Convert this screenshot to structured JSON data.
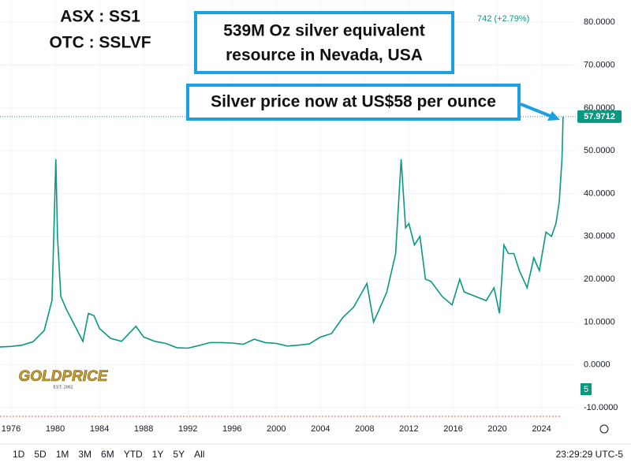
{
  "chart_data": {
    "type": "line",
    "x": [
      1975.0,
      1976,
      1977,
      1978,
      1979,
      1979.7,
      1980.05,
      1980.2,
      1980.5,
      1981,
      1982,
      1982.5,
      1983,
      1983.5,
      1984,
      1985,
      1986,
      1987.3,
      1988,
      1989,
      1990,
      1991,
      1992,
      1993,
      1994,
      1995,
      1996,
      1997,
      1998,
      1999,
      2000,
      2001,
      2002,
      2003,
      2004,
      2005,
      2006,
      2007,
      2008.2,
      2008.8,
      2009.5,
      2010,
      2010.8,
      2011.3,
      2011.7,
      2012,
      2012.5,
      2013,
      2013.5,
      2014,
      2015,
      2015.9,
      2016.6,
      2017,
      2018,
      2019,
      2019.7,
      2020.2,
      2020.6,
      2021,
      2021.5,
      2022,
      2022.7,
      2023.3,
      2023.8,
      2024.4,
      2024.9,
      2025.3,
      2025.6,
      2025.85,
      2025.95
    ],
    "values": [
      4.2,
      4.3,
      4.6,
      5.4,
      8,
      15,
      48,
      30,
      16,
      13,
      8,
      5.5,
      12,
      11.5,
      8.5,
      6.2,
      5.5,
      9,
      6.5,
      5.5,
      5,
      4,
      3.9,
      4.5,
      5.2,
      5.2,
      5.1,
      4.8,
      6,
      5.2,
      5,
      4.4,
      4.6,
      4.9,
      6.5,
      7.3,
      11,
      13.5,
      19,
      10,
      14,
      17,
      26,
      48,
      32,
      33,
      28,
      30,
      20,
      19.5,
      16,
      14,
      20,
      17,
      16,
      15,
      18,
      12,
      28,
      26,
      26,
      22,
      18,
      25,
      22,
      31,
      30,
      33,
      38,
      48,
      57.97
    ],
    "color": "#089981",
    "xlim": [
      1975.0,
      2027.1
    ],
    "ylim": [
      -12.4,
      85.2
    ],
    "xticks": [
      1976,
      1980,
      1984,
      1988,
      1992,
      1996,
      2000,
      2004,
      2008,
      2012,
      2016,
      2020,
      2024
    ],
    "yticks": [
      {
        "value": 80,
        "label": "80.0000"
      },
      {
        "value": 70,
        "label": "70.0000"
      },
      {
        "value": 60,
        "label": "60.0000"
      },
      {
        "value": 50,
        "label": "50.0000"
      },
      {
        "value": 40,
        "label": "40.0000"
      },
      {
        "value": 30,
        "label": "30.0000"
      },
      {
        "value": 20,
        "label": "20.0000"
      },
      {
        "value": 10,
        "label": "10.0000"
      },
      {
        "value": 0,
        "label": "0.0000"
      },
      {
        "value": -10,
        "label": "-10.0000"
      }
    ],
    "last_label": "57.9712",
    "change_text": "742 (+2.79%)",
    "volume_label": "5",
    "tickers": [
      "ASX : SS1",
      "OTC : SSLVF"
    ],
    "box_lines": [
      "539M Oz silver equivalent",
      "resource in Nevada, USA"
    ],
    "price_note": "Silver price now at US$58 per ounce"
  },
  "logo": {
    "name": "GOLDPRICE",
    "est": "EST. 2002"
  },
  "toolbar": {
    "ranges": [
      "1D",
      "5D",
      "1M",
      "3M",
      "6M",
      "YTD",
      "1Y",
      "5Y",
      "All"
    ],
    "clock": "23:29:29 UTC-5"
  }
}
